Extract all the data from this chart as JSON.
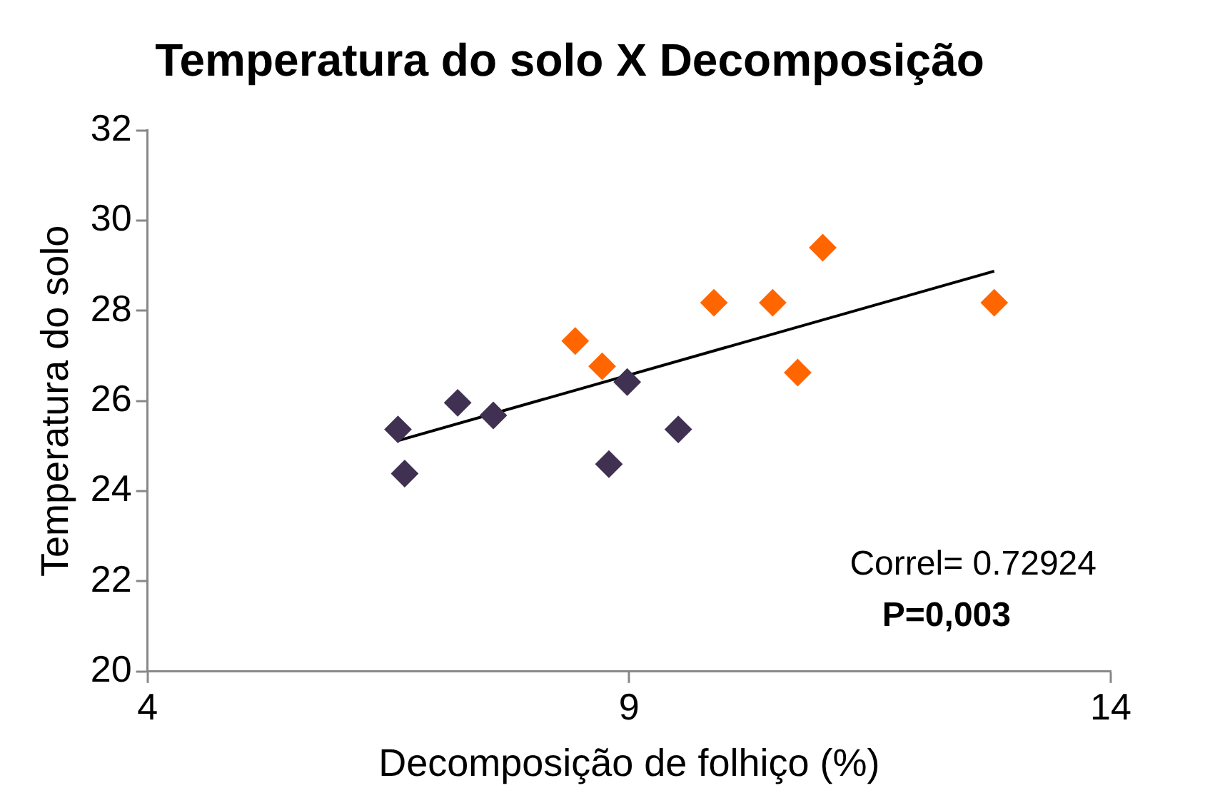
{
  "chart_data": {
    "type": "scatter",
    "title": "Temperatura do solo X Decomposição",
    "xlabel": "Decomposição de folhiço (%)",
    "ylabel": "Temperatura do solo",
    "xlim": [
      4,
      14
    ],
    "xticks": [
      4,
      9,
      14
    ],
    "ylim": [
      20,
      32
    ],
    "yticks": [
      20,
      22,
      24,
      26,
      28,
      30,
      32
    ],
    "grid": false,
    "legend": false,
    "marker": "diamond",
    "series": [
      {
        "color": "#403152",
        "x": [
          6.6,
          6.67,
          7.22,
          7.59,
          8.79,
          8.98,
          9.51
        ],
        "values": [
          25.37,
          24.39,
          25.96,
          25.68,
          24.6,
          26.42,
          25.37
        ]
      },
      {
        "color": "#ff6600",
        "x": [
          8.44,
          8.72,
          9.88,
          10.49,
          10.75,
          11.01,
          12.79
        ],
        "values": [
          27.33,
          26.77,
          28.18,
          28.18,
          26.63,
          29.4,
          28.18
        ]
      },
      {
        "type": "line",
        "color": "#000000",
        "marker": "none",
        "x": [
          6.6,
          12.79
        ],
        "values": [
          25.12,
          28.88
        ]
      }
    ],
    "annotations": [
      "Correl= 0.72924",
      "P=0,003"
    ]
  }
}
